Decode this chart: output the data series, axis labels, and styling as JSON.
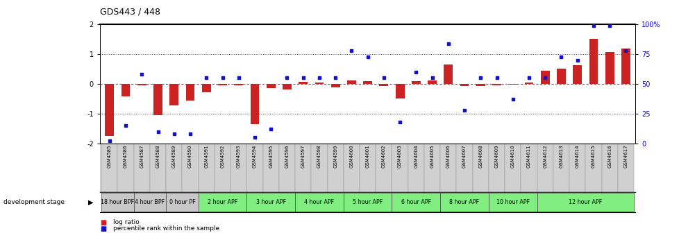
{
  "title": "GDS443 / 448",
  "samples": [
    "GSM4585",
    "GSM4586",
    "GSM4587",
    "GSM4588",
    "GSM4589",
    "GSM4590",
    "GSM4591",
    "GSM4592",
    "GSM4593",
    "GSM4594",
    "GSM4595",
    "GSM4596",
    "GSM4597",
    "GSM4598",
    "GSM4599",
    "GSM4600",
    "GSM4601",
    "GSM4602",
    "GSM4603",
    "GSM4604",
    "GSM4605",
    "GSM4606",
    "GSM4607",
    "GSM4608",
    "GSM4609",
    "GSM4610",
    "GSM4611",
    "GSM4612",
    "GSM4613",
    "GSM4614",
    "GSM4615",
    "GSM4616",
    "GSM4617"
  ],
  "log_ratio": [
    -1.75,
    -0.42,
    -0.05,
    -1.05,
    -0.72,
    -0.55,
    -0.28,
    -0.04,
    -0.04,
    -1.35,
    -0.15,
    -0.18,
    0.06,
    0.04,
    -0.12,
    0.12,
    0.1,
    -0.08,
    -0.48,
    0.1,
    0.12,
    0.65,
    -0.08,
    -0.06,
    -0.04,
    -0.02,
    0.04,
    0.45,
    0.52,
    0.62,
    1.52,
    1.08,
    1.18
  ],
  "percentile": [
    2,
    15,
    58,
    10,
    8,
    8,
    55,
    55,
    55,
    5,
    12,
    55,
    55,
    55,
    55,
    78,
    73,
    55,
    18,
    60,
    55,
    84,
    28,
    55,
    55,
    37,
    55,
    55,
    73,
    70,
    99,
    99,
    78
  ],
  "stage_groups": [
    {
      "label": "18 hour BPF",
      "samples": [
        0,
        1
      ],
      "color": "#c8c8c8"
    },
    {
      "label": "4 hour BPF",
      "samples": [
        2,
        3
      ],
      "color": "#c8c8c8"
    },
    {
      "label": "0 hour PF",
      "samples": [
        4,
        5
      ],
      "color": "#c8c8c8"
    },
    {
      "label": "2 hour APF",
      "samples": [
        6,
        7,
        8
      ],
      "color": "#80ee80"
    },
    {
      "label": "3 hour APF",
      "samples": [
        9,
        10,
        11
      ],
      "color": "#80ee80"
    },
    {
      "label": "4 hour APF",
      "samples": [
        12,
        13,
        14
      ],
      "color": "#80ee80"
    },
    {
      "label": "5 hour APF",
      "samples": [
        15,
        16,
        17
      ],
      "color": "#80ee80"
    },
    {
      "label": "6 hour APF",
      "samples": [
        18,
        19,
        20
      ],
      "color": "#80ee80"
    },
    {
      "label": "8 hour APF",
      "samples": [
        21,
        22,
        23
      ],
      "color": "#80ee80"
    },
    {
      "label": "10 hour APF",
      "samples": [
        24,
        25,
        26
      ],
      "color": "#80ee80"
    },
    {
      "label": "12 hour APF",
      "samples": [
        27,
        28,
        29,
        30,
        31,
        32
      ],
      "color": "#80ee80"
    }
  ],
  "bar_color": "#cc2222",
  "dot_color": "#1111cc",
  "bg_color": "#ffffff",
  "hline_color": "#dd3333",
  "dotted_color": "#444444",
  "label_bg": "#d0d0d0"
}
